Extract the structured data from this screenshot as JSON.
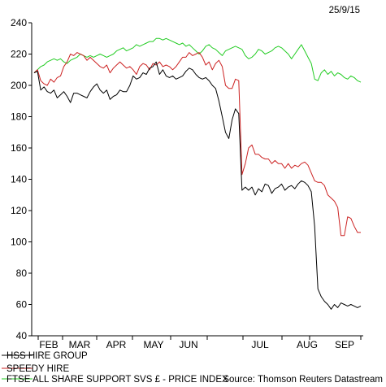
{
  "chart_data": {
    "type": "line",
    "date_label": "25/9/15",
    "source": "Source: Thomson Reuters Datastream",
    "yticks": [
      40,
      60,
      80,
      100,
      120,
      140,
      160,
      180,
      200,
      220,
      240
    ],
    "ylim": [
      40,
      240
    ],
    "month_labels": [
      "FEB",
      "MAR",
      "APR",
      "MAY",
      "JUN",
      "JUL",
      "AUG",
      "SEP"
    ],
    "grid": false,
    "legend_position": "bottom-left",
    "series": [
      {
        "name": "HSS HIRE GROUP",
        "color": "#000000",
        "values": [
          208,
          209,
          197,
          199,
          196,
          195,
          197,
          192,
          194,
          196,
          193,
          189,
          195,
          195,
          194,
          193,
          192,
          196,
          199,
          201,
          197,
          195,
          197,
          191,
          193,
          194,
          197,
          196,
          196,
          200,
          206,
          204,
          205,
          208,
          207,
          211,
          212,
          215,
          207,
          210,
          206,
          205,
          206,
          204,
          205,
          206,
          209,
          211,
          210,
          207,
          205,
          204,
          205,
          203,
          200,
          198,
          190,
          180,
          170,
          166,
          178,
          185,
          182,
          133,
          135,
          133,
          135,
          130,
          134,
          132,
          137,
          136,
          131,
          134,
          135,
          137,
          133,
          135,
          136,
          134,
          137,
          139,
          138,
          136,
          132,
          110,
          70,
          65,
          62,
          60,
          57,
          60,
          58,
          61,
          60,
          59,
          60,
          59,
          58,
          59
        ]
      },
      {
        "name": "SPEEDY HIRE",
        "color": "#cc2222",
        "values": [
          208,
          210,
          203,
          201,
          200,
          204,
          202,
          205,
          206,
          212,
          215,
          220,
          219,
          221,
          220,
          219,
          216,
          218,
          216,
          214,
          212,
          211,
          213,
          208,
          211,
          213,
          215,
          213,
          211,
          212,
          210,
          207,
          212,
          214,
          213,
          210,
          214,
          213,
          215,
          212,
          213,
          212,
          210,
          212,
          215,
          218,
          218,
          221,
          219,
          220,
          221,
          218,
          213,
          215,
          210,
          214,
          216,
          212,
          200,
          198,
          198,
          204,
          203,
          143,
          150,
          160,
          162,
          156,
          156,
          154,
          153,
          153,
          150,
          152,
          150,
          150,
          147,
          150,
          147,
          149,
          148,
          150,
          151,
          149,
          144,
          139,
          138,
          138,
          136,
          130,
          128,
          126,
          122,
          104,
          104,
          116,
          115,
          110,
          106,
          106
        ]
      },
      {
        "name": "FTSE ALL SHARE SUPPORT SVS £ - PRICE INDEX",
        "color": "#22cc22",
        "values": [
          208,
          210,
          212,
          213,
          215,
          216,
          217,
          216,
          217,
          215,
          214,
          216,
          217,
          218,
          220,
          219,
          218,
          219,
          218,
          219,
          220,
          219,
          218,
          219,
          220,
          222,
          223,
          224,
          222,
          223,
          224,
          226,
          225,
          226,
          227,
          228,
          228,
          230,
          230,
          229,
          230,
          229,
          228,
          227,
          226,
          227,
          225,
          226,
          224,
          222,
          220,
          222,
          225,
          226,
          224,
          223,
          221,
          219,
          222,
          223,
          224,
          225,
          224,
          223,
          219,
          217,
          218,
          220,
          223,
          222,
          220,
          221,
          222,
          224,
          225,
          224,
          222,
          220,
          217,
          220,
          223,
          226,
          222,
          218,
          214,
          204,
          203,
          208,
          210,
          207,
          209,
          206,
          208,
          207,
          205,
          204,
          206,
          205,
          203,
          202
        ]
      }
    ]
  }
}
